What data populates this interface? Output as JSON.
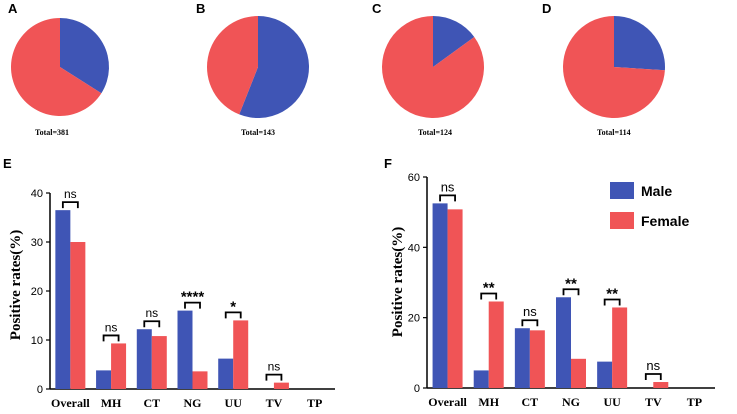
{
  "colors": {
    "male": "#3f55b5",
    "female": "#f05456"
  },
  "chart_data": [
    {
      "panel": "A",
      "type": "pie",
      "total_label": "Total=381",
      "slices": [
        {
          "name": "Male",
          "value": 34
        },
        {
          "name": "Female",
          "value": 66
        }
      ]
    },
    {
      "panel": "B",
      "type": "pie",
      "total_label": "Total=143",
      "slices": [
        {
          "name": "Male",
          "value": 56
        },
        {
          "name": "Female",
          "value": 44
        }
      ]
    },
    {
      "panel": "C",
      "type": "pie",
      "total_label": "Total=124",
      "slices": [
        {
          "name": "Male",
          "value": 15
        },
        {
          "name": "Female",
          "value": 85
        }
      ]
    },
    {
      "panel": "D",
      "type": "pie",
      "total_label": "Total=114",
      "slices": [
        {
          "name": "Male",
          "value": 26
        },
        {
          "name": "Female",
          "value": 74
        }
      ]
    },
    {
      "panel": "E",
      "type": "bar",
      "ylabel": "Positive rates(%)",
      "ylim": [
        0,
        40
      ],
      "yticks": [
        "0",
        "10",
        "20",
        "30",
        "40"
      ],
      "categories": [
        "Overall",
        "MH",
        "CT",
        "NG",
        "UU",
        "TV",
        "TP"
      ],
      "series": [
        {
          "name": "Male",
          "values": [
            36.5,
            3.8,
            12.2,
            16.0,
            6.2,
            0,
            0
          ]
        },
        {
          "name": "Female",
          "values": [
            30.0,
            9.3,
            10.8,
            3.6,
            14.0,
            1.3,
            0
          ]
        }
      ],
      "significance": [
        "ns",
        "ns",
        "ns",
        "****",
        "*",
        "ns",
        ""
      ]
    },
    {
      "panel": "F",
      "type": "bar",
      "ylabel": "Positive rates(%)",
      "ylim": [
        0,
        60
      ],
      "yticks": [
        "0",
        "20",
        "40",
        "60"
      ],
      "categories": [
        "Overall",
        "MH",
        "CT",
        "NG",
        "UU",
        "TV",
        "TP"
      ],
      "series": [
        {
          "name": "Male",
          "values": [
            52.5,
            5.0,
            17.0,
            25.8,
            7.5,
            0,
            0
          ]
        },
        {
          "name": "Female",
          "values": [
            50.8,
            24.6,
            16.4,
            8.3,
            22.9,
            1.7,
            0
          ]
        }
      ],
      "significance": [
        "ns",
        "**",
        "ns",
        "**",
        "**",
        "ns",
        ""
      ],
      "legend": [
        "Male",
        "Female"
      ]
    }
  ]
}
